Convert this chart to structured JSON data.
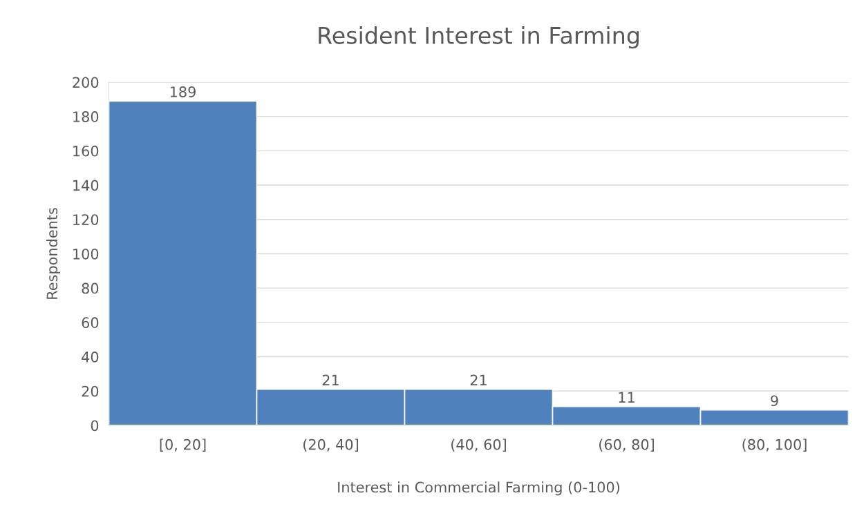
{
  "chart_data": {
    "type": "bar",
    "title": "Resident Interest in Farming",
    "xlabel": "Interest in Commercial Farming (0-100)",
    "ylabel": "Respondents",
    "categories": [
      "[0, 20]",
      "(20, 40]",
      "(40, 60]",
      "(60, 80]",
      "(80, 100]"
    ],
    "values": [
      189,
      21,
      21,
      11,
      9
    ],
    "color": "#4f81bd",
    "ylim": [
      0,
      200
    ],
    "yticks": [
      0,
      20,
      40,
      60,
      80,
      100,
      120,
      140,
      160,
      180,
      200
    ],
    "grid": "y",
    "data_labels": true,
    "legend": false
  }
}
